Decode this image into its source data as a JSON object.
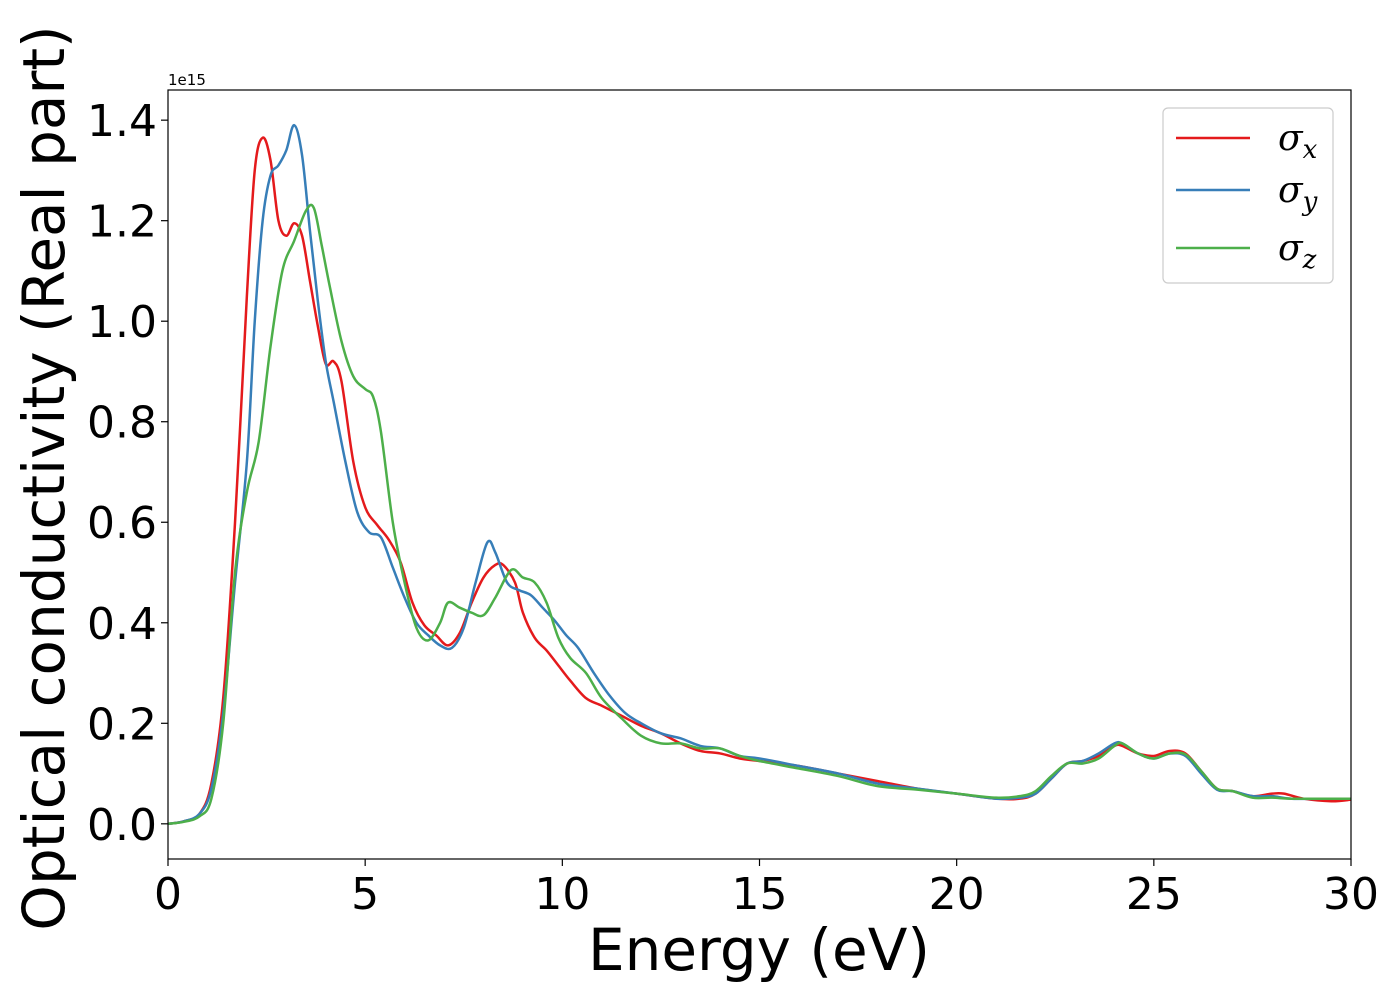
{
  "chart_data": {
    "type": "line",
    "xlabel": "Energy (eV)",
    "ylabel": "Optical conductivity (Real part)",
    "y_offset_label": "1e15",
    "xlim": [
      0,
      30
    ],
    "ylim": [
      -0.07,
      1.46
    ],
    "x_ticks": [
      0,
      5,
      10,
      15,
      20,
      25,
      30
    ],
    "x_tick_labels": [
      "0",
      "5",
      "10",
      "15",
      "20",
      "25",
      "30"
    ],
    "y_ticks": [
      0.0,
      0.2,
      0.4,
      0.6,
      0.8,
      1.0,
      1.2,
      1.4
    ],
    "y_tick_labels": [
      "0.0",
      "0.2",
      "0.4",
      "0.6",
      "0.8",
      "1.0",
      "1.2",
      "1.4"
    ],
    "grid": false,
    "legend_position": "top-right",
    "series": [
      {
        "name": "σx",
        "legend_main": "σ",
        "legend_sub": "x",
        "color": "#e41a1c",
        "points": [
          [
            0,
            0
          ],
          [
            0.4,
            0.005
          ],
          [
            0.8,
            0.02
          ],
          [
            1.1,
            0.08
          ],
          [
            1.4,
            0.25
          ],
          [
            1.7,
            0.6
          ],
          [
            2.0,
            1.05
          ],
          [
            2.2,
            1.3
          ],
          [
            2.4,
            1.365
          ],
          [
            2.6,
            1.32
          ],
          [
            2.8,
            1.2
          ],
          [
            3.0,
            1.17
          ],
          [
            3.2,
            1.195
          ],
          [
            3.4,
            1.17
          ],
          [
            3.6,
            1.08
          ],
          [
            3.8,
            0.99
          ],
          [
            4.0,
            0.915
          ],
          [
            4.2,
            0.92
          ],
          [
            4.4,
            0.88
          ],
          [
            4.7,
            0.72
          ],
          [
            5.0,
            0.63
          ],
          [
            5.3,
            0.595
          ],
          [
            5.6,
            0.565
          ],
          [
            5.9,
            0.52
          ],
          [
            6.2,
            0.44
          ],
          [
            6.5,
            0.395
          ],
          [
            6.8,
            0.375
          ],
          [
            7.1,
            0.355
          ],
          [
            7.4,
            0.38
          ],
          [
            7.7,
            0.44
          ],
          [
            8.0,
            0.49
          ],
          [
            8.3,
            0.515
          ],
          [
            8.5,
            0.515
          ],
          [
            8.8,
            0.48
          ],
          [
            9.0,
            0.42
          ],
          [
            9.3,
            0.37
          ],
          [
            9.6,
            0.345
          ],
          [
            9.9,
            0.315
          ],
          [
            10.2,
            0.285
          ],
          [
            10.6,
            0.25
          ],
          [
            11.0,
            0.235
          ],
          [
            11.5,
            0.215
          ],
          [
            12.0,
            0.195
          ],
          [
            12.5,
            0.18
          ],
          [
            13.0,
            0.16
          ],
          [
            13.5,
            0.145
          ],
          [
            14.0,
            0.14
          ],
          [
            14.5,
            0.13
          ],
          [
            15.0,
            0.125
          ],
          [
            16.0,
            0.115
          ],
          [
            17.0,
            0.1
          ],
          [
            18.0,
            0.085
          ],
          [
            19.0,
            0.07
          ],
          [
            20.0,
            0.06
          ],
          [
            21.0,
            0.05
          ],
          [
            21.6,
            0.05
          ],
          [
            22.0,
            0.06
          ],
          [
            22.4,
            0.09
          ],
          [
            22.8,
            0.12
          ],
          [
            23.2,
            0.125
          ],
          [
            23.6,
            0.135
          ],
          [
            24.0,
            0.155
          ],
          [
            24.2,
            0.155
          ],
          [
            24.6,
            0.14
          ],
          [
            25.0,
            0.135
          ],
          [
            25.4,
            0.145
          ],
          [
            25.8,
            0.14
          ],
          [
            26.2,
            0.105
          ],
          [
            26.6,
            0.07
          ],
          [
            27.0,
            0.065
          ],
          [
            27.5,
            0.055
          ],
          [
            28.0,
            0.06
          ],
          [
            28.3,
            0.06
          ],
          [
            28.8,
            0.05
          ],
          [
            29.5,
            0.045
          ],
          [
            30,
            0.048
          ]
        ]
      },
      {
        "name": "σy",
        "legend_main": "σ",
        "legend_sub": "y",
        "color": "#377eb8",
        "points": [
          [
            0,
            0
          ],
          [
            0.4,
            0.005
          ],
          [
            0.8,
            0.02
          ],
          [
            1.1,
            0.07
          ],
          [
            1.4,
            0.22
          ],
          [
            1.7,
            0.48
          ],
          [
            2.0,
            0.72
          ],
          [
            2.2,
            1.0
          ],
          [
            2.4,
            1.2
          ],
          [
            2.6,
            1.29
          ],
          [
            2.8,
            1.31
          ],
          [
            3.0,
            1.34
          ],
          [
            3.2,
            1.39
          ],
          [
            3.4,
            1.33
          ],
          [
            3.6,
            1.18
          ],
          [
            3.8,
            1.04
          ],
          [
            4.0,
            0.92
          ],
          [
            4.2,
            0.84
          ],
          [
            4.5,
            0.72
          ],
          [
            4.8,
            0.62
          ],
          [
            5.1,
            0.58
          ],
          [
            5.4,
            0.57
          ],
          [
            5.7,
            0.51
          ],
          [
            6.0,
            0.45
          ],
          [
            6.3,
            0.4
          ],
          [
            6.6,
            0.375
          ],
          [
            6.9,
            0.355
          ],
          [
            7.2,
            0.35
          ],
          [
            7.5,
            0.39
          ],
          [
            7.8,
            0.48
          ],
          [
            8.1,
            0.56
          ],
          [
            8.3,
            0.54
          ],
          [
            8.6,
            0.48
          ],
          [
            8.9,
            0.465
          ],
          [
            9.2,
            0.455
          ],
          [
            9.5,
            0.43
          ],
          [
            9.8,
            0.405
          ],
          [
            10.1,
            0.375
          ],
          [
            10.4,
            0.35
          ],
          [
            10.8,
            0.3
          ],
          [
            11.2,
            0.255
          ],
          [
            11.6,
            0.22
          ],
          [
            12.0,
            0.2
          ],
          [
            12.5,
            0.18
          ],
          [
            13.0,
            0.17
          ],
          [
            13.5,
            0.155
          ],
          [
            14.0,
            0.15
          ],
          [
            14.5,
            0.135
          ],
          [
            15.0,
            0.13
          ],
          [
            16.0,
            0.115
          ],
          [
            17.0,
            0.1
          ],
          [
            18.0,
            0.08
          ],
          [
            19.0,
            0.07
          ],
          [
            20.0,
            0.06
          ],
          [
            21.0,
            0.05
          ],
          [
            21.6,
            0.052
          ],
          [
            22.0,
            0.06
          ],
          [
            22.4,
            0.09
          ],
          [
            22.8,
            0.12
          ],
          [
            23.2,
            0.125
          ],
          [
            23.6,
            0.14
          ],
          [
            24.0,
            0.16
          ],
          [
            24.2,
            0.16
          ],
          [
            24.6,
            0.14
          ],
          [
            25.0,
            0.13
          ],
          [
            25.4,
            0.14
          ],
          [
            25.8,
            0.135
          ],
          [
            26.2,
            0.1
          ],
          [
            26.6,
            0.068
          ],
          [
            27.0,
            0.065
          ],
          [
            27.5,
            0.055
          ],
          [
            28.0,
            0.055
          ],
          [
            28.5,
            0.05
          ],
          [
            29.5,
            0.05
          ],
          [
            30,
            0.05
          ]
        ]
      },
      {
        "name": "σz",
        "legend_main": "σ",
        "legend_sub": "z",
        "color": "#4daf4a",
        "points": [
          [
            0,
            0
          ],
          [
            0.4,
            0.004
          ],
          [
            0.8,
            0.015
          ],
          [
            1.1,
            0.05
          ],
          [
            1.4,
            0.2
          ],
          [
            1.7,
            0.5
          ],
          [
            2.0,
            0.66
          ],
          [
            2.3,
            0.76
          ],
          [
            2.6,
            0.95
          ],
          [
            2.9,
            1.1
          ],
          [
            3.2,
            1.16
          ],
          [
            3.5,
            1.22
          ],
          [
            3.7,
            1.225
          ],
          [
            3.9,
            1.15
          ],
          [
            4.1,
            1.07
          ],
          [
            4.4,
            0.96
          ],
          [
            4.7,
            0.89
          ],
          [
            5.0,
            0.865
          ],
          [
            5.2,
            0.85
          ],
          [
            5.4,
            0.78
          ],
          [
            5.7,
            0.6
          ],
          [
            6.0,
            0.48
          ],
          [
            6.3,
            0.39
          ],
          [
            6.6,
            0.365
          ],
          [
            6.9,
            0.4
          ],
          [
            7.1,
            0.44
          ],
          [
            7.4,
            0.43
          ],
          [
            7.7,
            0.42
          ],
          [
            8.0,
            0.415
          ],
          [
            8.3,
            0.45
          ],
          [
            8.7,
            0.505
          ],
          [
            9.0,
            0.49
          ],
          [
            9.3,
            0.48
          ],
          [
            9.6,
            0.44
          ],
          [
            9.9,
            0.37
          ],
          [
            10.2,
            0.33
          ],
          [
            10.6,
            0.3
          ],
          [
            11.0,
            0.25
          ],
          [
            11.5,
            0.21
          ],
          [
            12.0,
            0.175
          ],
          [
            12.5,
            0.16
          ],
          [
            13.0,
            0.16
          ],
          [
            13.5,
            0.15
          ],
          [
            14.0,
            0.15
          ],
          [
            14.5,
            0.135
          ],
          [
            15.0,
            0.125
          ],
          [
            16.0,
            0.11
          ],
          [
            17.0,
            0.095
          ],
          [
            18.0,
            0.075
          ],
          [
            19.0,
            0.068
          ],
          [
            20.0,
            0.06
          ],
          [
            21.0,
            0.052
          ],
          [
            21.6,
            0.055
          ],
          [
            22.0,
            0.065
          ],
          [
            22.4,
            0.095
          ],
          [
            22.8,
            0.12
          ],
          [
            23.2,
            0.12
          ],
          [
            23.6,
            0.13
          ],
          [
            24.0,
            0.155
          ],
          [
            24.2,
            0.16
          ],
          [
            24.6,
            0.14
          ],
          [
            25.0,
            0.13
          ],
          [
            25.4,
            0.14
          ],
          [
            25.8,
            0.138
          ],
          [
            26.2,
            0.105
          ],
          [
            26.6,
            0.07
          ],
          [
            27.0,
            0.065
          ],
          [
            27.5,
            0.052
          ],
          [
            28.0,
            0.052
          ],
          [
            28.5,
            0.05
          ],
          [
            29.5,
            0.05
          ],
          [
            30,
            0.05
          ]
        ]
      }
    ]
  }
}
